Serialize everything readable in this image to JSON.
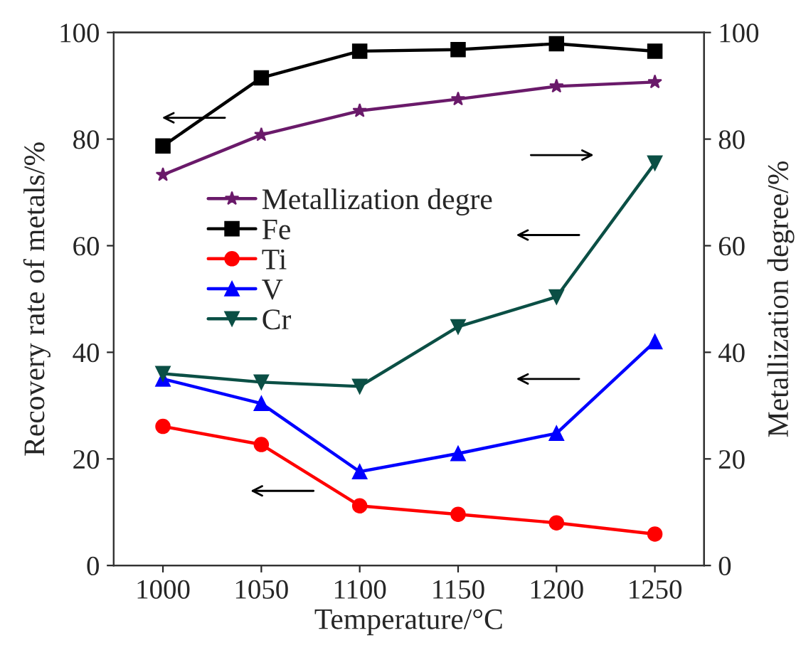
{
  "chart_data": {
    "type": "line",
    "xlabel": "Temperature/°C",
    "ylabel": "Recovery rate of metals/%",
    "y2label": "Metallization degree/%",
    "x": [
      1000,
      1050,
      1100,
      1150,
      1200,
      1250
    ],
    "series": [
      {
        "name": "Metallization degre",
        "color": "#6a1a6a",
        "marker": "star",
        "axis": "y2",
        "values": [
          73.3,
          80.8,
          85.3,
          87.5,
          89.9,
          90.7
        ]
      },
      {
        "name": "Fe",
        "color": "#000000",
        "marker": "square",
        "values": [
          78.7,
          91.5,
          96.5,
          96.8,
          97.9,
          96.5
        ]
      },
      {
        "name": "Ti",
        "color": "#ff0000",
        "marker": "circle",
        "values": [
          26.1,
          22.7,
          11.2,
          9.6,
          8.0,
          5.9
        ]
      },
      {
        "name": "V",
        "color": "#0000ff",
        "marker": "triangle",
        "values": [
          35.0,
          30.4,
          17.6,
          21.0,
          24.8,
          42.0
        ]
      },
      {
        "name": "Cr",
        "color": "#0b4f45",
        "marker": "triangle-down",
        "values": [
          36.0,
          34.4,
          33.6,
          44.8,
          50.4,
          75.5
        ]
      }
    ],
    "xlim": [
      975,
      1275
    ],
    "xticks": [
      1000,
      1050,
      1100,
      1150,
      1200,
      1250
    ],
    "ylim": [
      0,
      100
    ],
    "yticks": [
      0,
      20,
      40,
      60,
      80,
      100
    ],
    "y2lim": [
      0,
      100
    ],
    "y2ticks": [
      0,
      20,
      40,
      60,
      80,
      100
    ],
    "grid": false,
    "legend": "top left",
    "line_style": "solid"
  }
}
